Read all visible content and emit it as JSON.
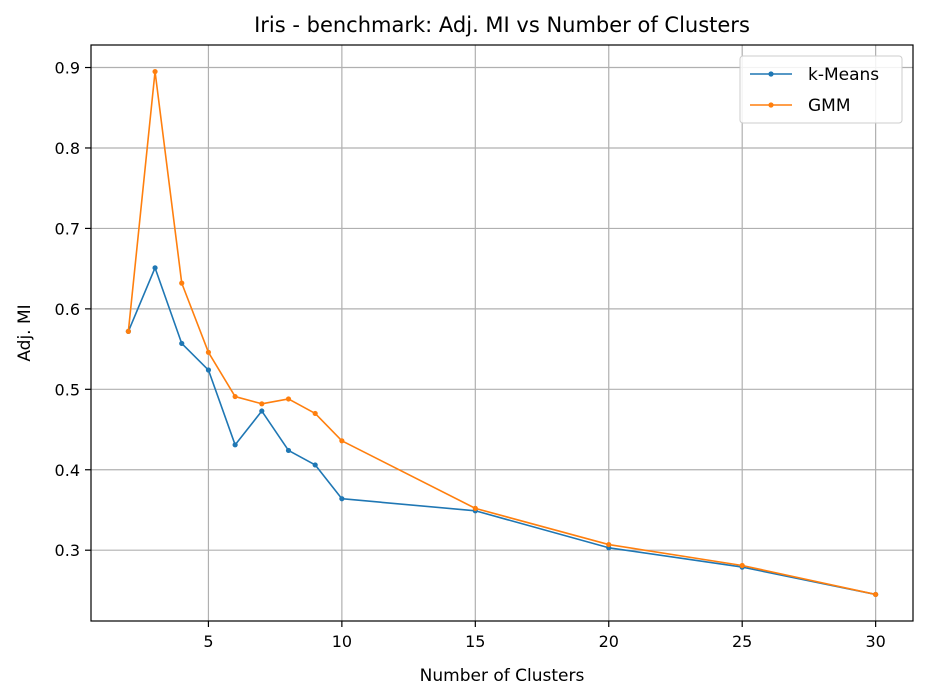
{
  "chart_data": {
    "type": "line",
    "title": "Iris - benchmark: Adj. MI vs Number of Clusters",
    "xlabel": "Number of Clusters",
    "ylabel": "Adj. MI",
    "x": [
      2,
      3,
      4,
      5,
      6,
      7,
      8,
      9,
      10,
      15,
      20,
      25,
      30
    ],
    "series": [
      {
        "name": "k-Means",
        "color": "#1f77b4",
        "values": [
          0.572,
          0.651,
          0.557,
          0.524,
          0.431,
          0.473,
          0.424,
          0.406,
          0.364,
          0.349,
          0.303,
          0.279,
          0.245
        ]
      },
      {
        "name": "GMM",
        "color": "#ff7f0e",
        "values": [
          0.572,
          0.895,
          0.632,
          0.546,
          0.491,
          0.482,
          0.488,
          0.47,
          0.436,
          0.352,
          0.307,
          0.281,
          0.245
        ]
      }
    ],
    "xlim": [
      0.6,
      31.4
    ],
    "ylim": [
      0.212,
      0.928
    ],
    "xticks": [
      5,
      10,
      15,
      20,
      25,
      30
    ],
    "yticks": [
      0.3,
      0.4,
      0.5,
      0.6,
      0.7,
      0.8,
      0.9
    ],
    "grid": true,
    "legend_position": "top-right"
  }
}
